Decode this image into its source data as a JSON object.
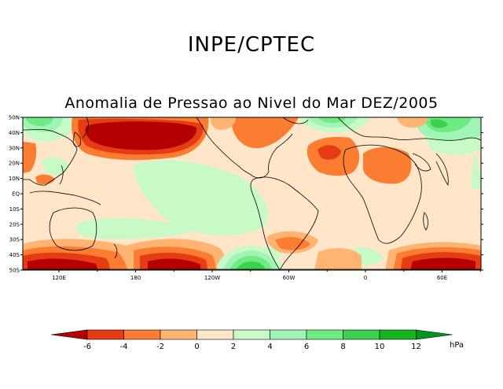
{
  "header": {
    "agency": "INPE/CPTEC",
    "title": "Anomalia de Pressao ao Nivel do Mar DEZ/2005"
  },
  "map": {
    "lat_labels": [
      "50N",
      "40N",
      "30N",
      "20N",
      "10N",
      "EQ",
      "10S",
      "20S",
      "30S",
      "40S",
      "50S"
    ],
    "lon_labels": [
      "120E",
      "180",
      "120W",
      "60W",
      "0",
      "60E"
    ]
  },
  "colorbar": {
    "unit": "hPa",
    "ticks": [
      "-6",
      "-4",
      "-2",
      "0",
      "2",
      "4",
      "6",
      "8",
      "10",
      "12"
    ],
    "colors": [
      "#b40000",
      "#e63c14",
      "#fa7d32",
      "#ffb472",
      "#ffe6c8",
      "#c8fac8",
      "#a0f5b4",
      "#6eeb82",
      "#3cd250",
      "#14b41e",
      "#00961e"
    ]
  }
}
